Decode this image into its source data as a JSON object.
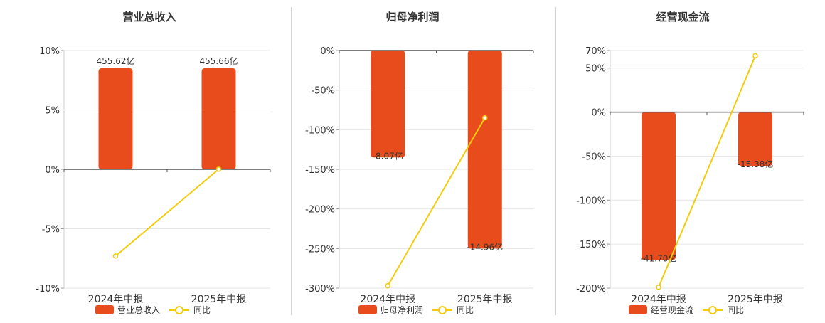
{
  "colors": {
    "bar": "#E84C1C",
    "line": "#F2CC0C",
    "axis": "#555555",
    "grid": "#E6E6E6",
    "text": "#333333",
    "divider": "#AAAAAA"
  },
  "legend": {
    "line_label": "同比"
  },
  "chart_data": [
    {
      "type": "bar",
      "title": "营业总收入",
      "categories": [
        "2024年中报",
        "2025年中报"
      ],
      "series": [
        {
          "name": "营业总收入",
          "kind": "bar",
          "values_display": [
            "455.62亿",
            "455.66亿"
          ]
        },
        {
          "name": "同比",
          "kind": "line",
          "unit": "%",
          "values": [
            -7.3,
            0.01
          ]
        }
      ],
      "bar_normalized_pct": [
        8.5,
        8.5
      ],
      "yticks": [
        10,
        5,
        0,
        -5,
        -10
      ],
      "ylim": [
        -10,
        10
      ],
      "grid": true,
      "legend_position": "bottom"
    },
    {
      "type": "bar",
      "title": "归母净利润",
      "categories": [
        "2024年中报",
        "2025年中报"
      ],
      "series": [
        {
          "name": "归母净利润",
          "kind": "bar",
          "values_display": [
            "-8.07亿",
            "-14.96亿"
          ]
        },
        {
          "name": "同比",
          "kind": "line",
          "unit": "%",
          "values": [
            -297,
            -85
          ]
        }
      ],
      "bar_normalized_pct": [
        -135,
        -250
      ],
      "yticks": [
        0,
        -50,
        -100,
        -150,
        -200,
        -250,
        -300
      ],
      "ylim": [
        -300,
        0
      ],
      "grid": true,
      "legend_position": "bottom"
    },
    {
      "type": "bar",
      "title": "经营现金流",
      "categories": [
        "2024年中报",
        "2025年中报"
      ],
      "series": [
        {
          "name": "经营现金流",
          "kind": "bar",
          "values_display": [
            "-41.70亿",
            "-15.38亿"
          ]
        },
        {
          "name": "同比",
          "kind": "line",
          "unit": "%",
          "values": [
            -199,
            64
          ]
        }
      ],
      "bar_normalized_pct": [
        -168,
        -61
      ],
      "yticks": [
        70,
        50,
        0,
        -50,
        -100,
        -150,
        -200
      ],
      "ylim": [
        -200,
        70
      ],
      "grid": true,
      "legend_position": "bottom"
    }
  ]
}
